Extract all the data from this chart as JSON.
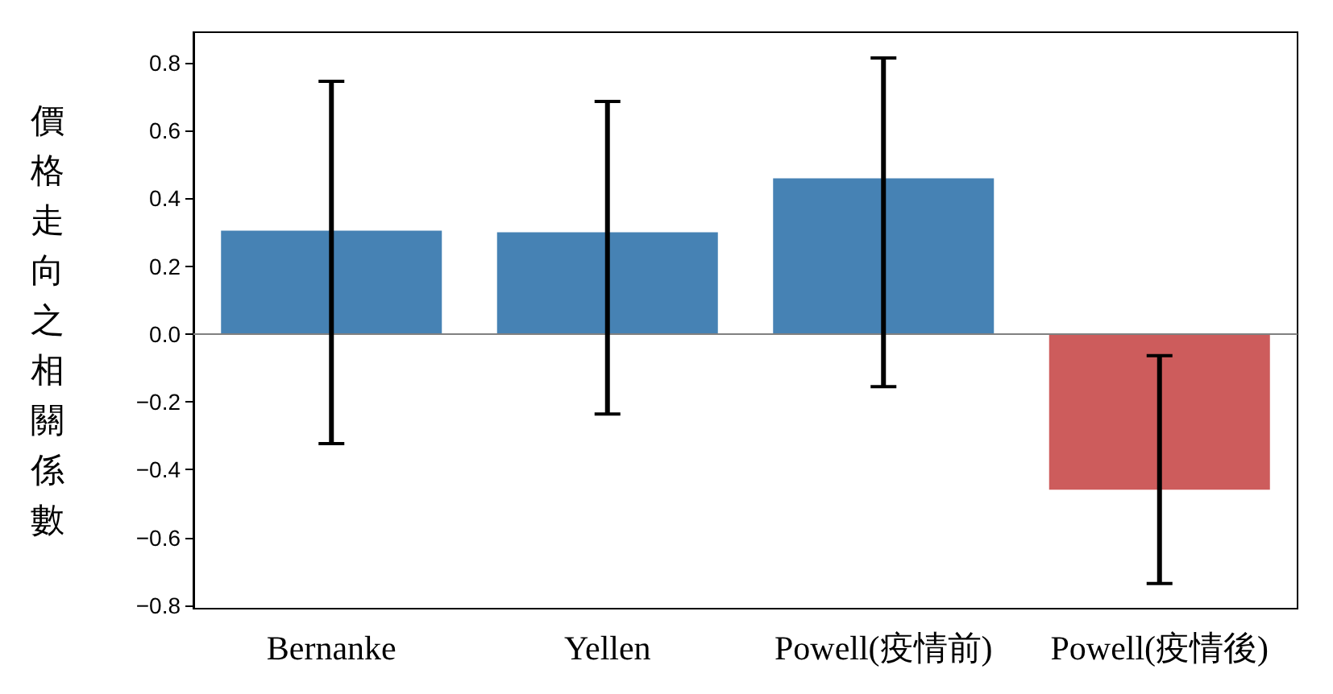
{
  "chart_data": {
    "type": "bar",
    "ylabel": "價格走向之相關係數",
    "categories": [
      "Bernanke",
      "Yellen",
      "Powell(疫情前)",
      "Powell(疫情後)"
    ],
    "values": [
      0.305,
      0.3,
      0.459,
      -0.459
    ],
    "colors": [
      "#4682b4",
      "#4682b4",
      "#4682b4",
      "#cd5c5c"
    ],
    "errors": [
      [
        -0.323,
        0.745
      ],
      [
        -0.236,
        0.686
      ],
      [
        -0.155,
        0.814
      ],
      [
        -0.736,
        -0.064
      ]
    ],
    "ylim": [
      -0.81,
      0.89
    ],
    "yticks": [
      {
        "value": -0.8,
        "label": "−0.8"
      },
      {
        "value": -0.6,
        "label": "−0.6"
      },
      {
        "value": -0.4,
        "label": "−0.4"
      },
      {
        "value": -0.2,
        "label": "−0.2"
      },
      {
        "value": 0,
        "label": "0.0"
      },
      {
        "value": 0.2,
        "label": "0.2"
      },
      {
        "value": 0.4,
        "label": "0.4"
      },
      {
        "value": 0.6,
        "label": "0.6"
      },
      {
        "value": 0.8,
        "label": "0.8"
      }
    ],
    "ref_lines": [
      {
        "axis": "y",
        "value": 0,
        "color": "#808080"
      }
    ],
    "grid": false
  }
}
